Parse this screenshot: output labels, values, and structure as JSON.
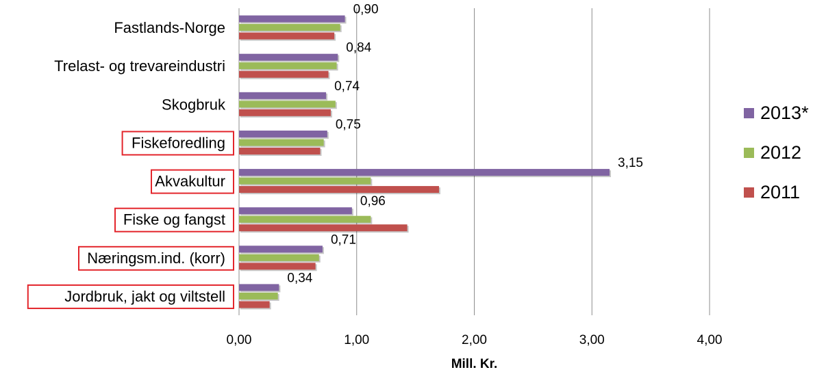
{
  "chart_data": {
    "type": "bar",
    "orientation": "horizontal",
    "categories": [
      "Jordbruk, jakt og viltstell",
      "Næringsm.ind. (korr)",
      "Fiske og fangst",
      "Akvakultur",
      "Fiskeforedling",
      "Skogbruk",
      "Trelast- og trevareindustri",
      "Fastlands-Norge"
    ],
    "highlighted_categories": [
      "Jordbruk, jakt og viltstell",
      "Næringsm.ind. (korr)",
      "Fiske og fangst",
      "Akvakultur",
      "Fiskeforedling"
    ],
    "series": [
      {
        "name": "2013*",
        "color": "#8064a2",
        "values": [
          0.34,
          0.71,
          0.96,
          3.15,
          0.75,
          0.74,
          0.84,
          0.9
        ]
      },
      {
        "name": "2012",
        "color": "#9bbb59",
        "values": [
          0.33,
          0.68,
          1.12,
          1.12,
          0.72,
          0.82,
          0.83,
          0.86
        ]
      },
      {
        "name": "2011",
        "color": "#c0504d",
        "values": [
          0.26,
          0.65,
          1.43,
          1.7,
          0.69,
          0.78,
          0.76,
          0.81
        ]
      }
    ],
    "data_labels": {
      "series": "2013*",
      "labels": [
        "0,34",
        "0,71",
        "0,96",
        "3,15",
        "0,75",
        "0,74",
        "0,84",
        "0,90"
      ]
    },
    "xlim": [
      0,
      4
    ],
    "xticks": [
      0,
      1,
      2,
      3,
      4
    ],
    "xtick_labels": [
      "0,00",
      "1,00",
      "2,00",
      "3,00",
      "4,00"
    ],
    "xlabel": "Mill. Kr.",
    "ylabel": "",
    "title": "",
    "grid": true,
    "legend_position": "right"
  }
}
